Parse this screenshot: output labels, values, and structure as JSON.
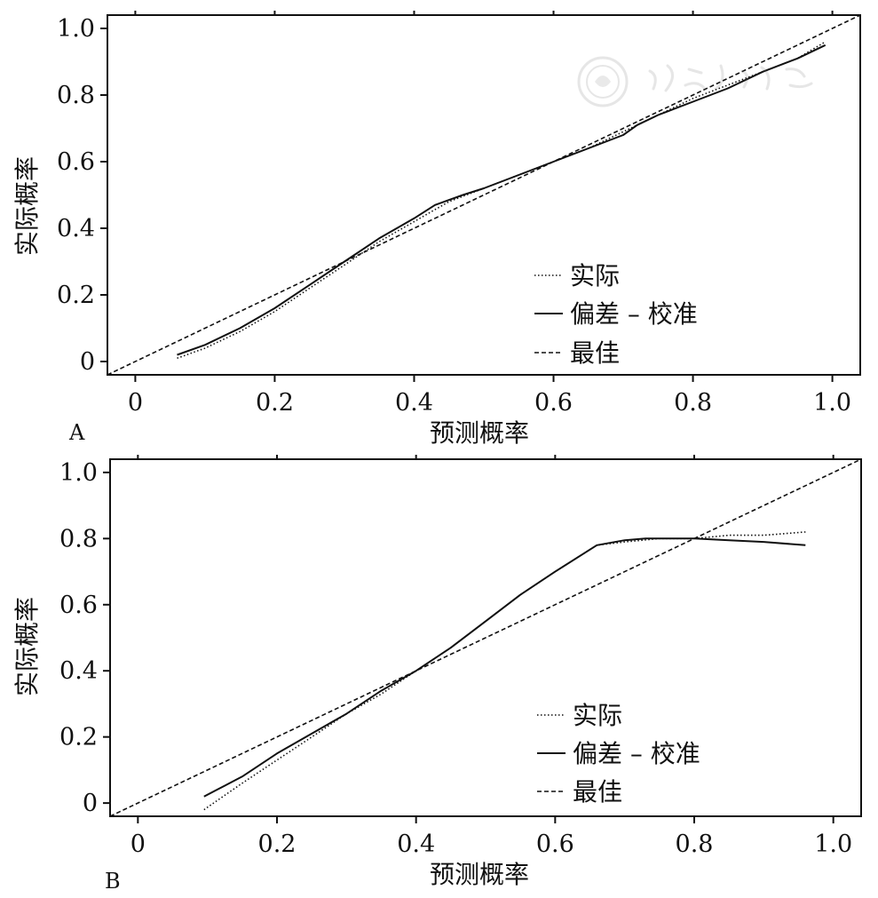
{
  "chart_data": [
    {
      "type": "line",
      "panel_label": "A",
      "xlabel": "预测概率",
      "ylabel": "实际概率",
      "xlim": [
        -0.04,
        1.04
      ],
      "ylim": [
        -0.04,
        1.04
      ],
      "xticks": [
        "0",
        "0.2",
        "0.4",
        "0.6",
        "0.8",
        "1.0"
      ],
      "yticks": [
        "0",
        "0.2",
        "0.4",
        "0.6",
        "0.8",
        "1.0"
      ],
      "legend_position": "bottom-right",
      "series": [
        {
          "name": "实际",
          "style": "dotted",
          "x": [
            0.06,
            0.1,
            0.15,
            0.2,
            0.25,
            0.3,
            0.35,
            0.4,
            0.45,
            0.5,
            0.55,
            0.6,
            0.65,
            0.7,
            0.75,
            0.8,
            0.85,
            0.9,
            0.95,
            0.99
          ],
          "y": [
            0.01,
            0.04,
            0.09,
            0.15,
            0.22,
            0.29,
            0.36,
            0.42,
            0.48,
            0.52,
            0.56,
            0.6,
            0.64,
            0.69,
            0.74,
            0.79,
            0.83,
            0.87,
            0.91,
            0.96
          ]
        },
        {
          "name": "偏差 – 校准",
          "style": "solid",
          "x": [
            0.06,
            0.1,
            0.15,
            0.2,
            0.25,
            0.3,
            0.35,
            0.4,
            0.43,
            0.47,
            0.5,
            0.55,
            0.6,
            0.65,
            0.7,
            0.72,
            0.75,
            0.8,
            0.85,
            0.9,
            0.95,
            0.99
          ],
          "y": [
            0.02,
            0.05,
            0.1,
            0.16,
            0.23,
            0.3,
            0.37,
            0.43,
            0.47,
            0.5,
            0.52,
            0.56,
            0.6,
            0.64,
            0.68,
            0.71,
            0.74,
            0.78,
            0.82,
            0.87,
            0.91,
            0.95
          ]
        },
        {
          "name": "最佳",
          "style": "dashed",
          "x": [
            -0.04,
            1.04
          ],
          "y": [
            -0.04,
            1.04
          ]
        }
      ]
    },
    {
      "type": "line",
      "panel_label": "B",
      "xlabel": "预测概率",
      "ylabel": "实际概率",
      "xlim": [
        -0.04,
        1.04
      ],
      "ylim": [
        -0.04,
        1.04
      ],
      "xticks": [
        "0",
        "0.2",
        "0.4",
        "0.6",
        "0.8",
        "1.0"
      ],
      "yticks": [
        "0",
        "0.2",
        "0.4",
        "0.6",
        "0.8",
        "1.0"
      ],
      "legend_position": "bottom-right",
      "series": [
        {
          "name": "实际",
          "style": "dotted",
          "x": [
            0.095,
            0.15,
            0.2,
            0.25,
            0.3,
            0.35,
            0.4,
            0.45,
            0.5,
            0.55,
            0.6,
            0.66,
            0.7,
            0.75,
            0.8,
            0.85,
            0.9,
            0.96
          ],
          "y": [
            -0.02,
            0.06,
            0.13,
            0.2,
            0.27,
            0.33,
            0.4,
            0.47,
            0.55,
            0.63,
            0.7,
            0.78,
            0.79,
            0.8,
            0.8,
            0.81,
            0.81,
            0.82
          ]
        },
        {
          "name": "偏差 – 校准",
          "style": "solid",
          "x": [
            0.095,
            0.15,
            0.2,
            0.25,
            0.3,
            0.35,
            0.4,
            0.45,
            0.5,
            0.55,
            0.6,
            0.66,
            0.7,
            0.73,
            0.8,
            0.85,
            0.9,
            0.96
          ],
          "y": [
            0.02,
            0.08,
            0.15,
            0.21,
            0.27,
            0.34,
            0.4,
            0.47,
            0.55,
            0.63,
            0.7,
            0.78,
            0.795,
            0.8,
            0.8,
            0.795,
            0.79,
            0.78
          ]
        },
        {
          "name": "最佳",
          "style": "dashed",
          "x": [
            -0.04,
            1.04
          ],
          "y": [
            -0.04,
            1.04
          ]
        }
      ]
    }
  ]
}
